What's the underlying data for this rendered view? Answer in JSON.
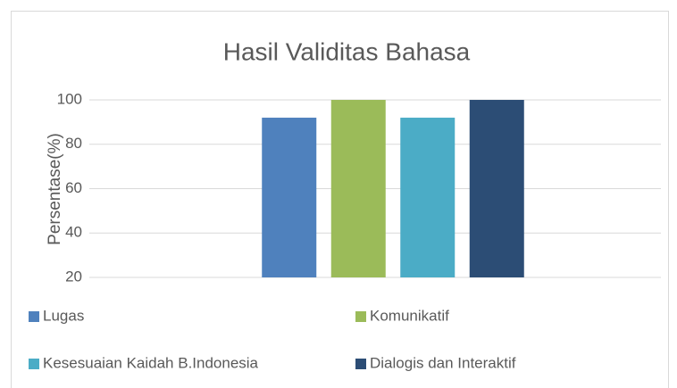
{
  "chart_data": {
    "type": "bar",
    "title": "Hasil Validitas Bahasa",
    "y_label": "Persentase(%)",
    "categories": [
      null
    ],
    "series": [
      {
        "name": "Lugas",
        "color": "#4f81bd",
        "values": [
          92
        ]
      },
      {
        "name": "Komunikatif",
        "color": "#9bbb59",
        "values": [
          100
        ]
      },
      {
        "name": "Kesesuaian Kaidah B.Indonesia",
        "color": "#4bacc6",
        "values": [
          92
        ]
      },
      {
        "name": "Dialogis dan Interaktif",
        "color": "#2c4d75",
        "values": [
          100
        ]
      }
    ],
    "ylim": [
      20,
      100
    ],
    "yticks": [
      20,
      40,
      60,
      80,
      100
    ],
    "grid": true,
    "legend": "bottom"
  }
}
